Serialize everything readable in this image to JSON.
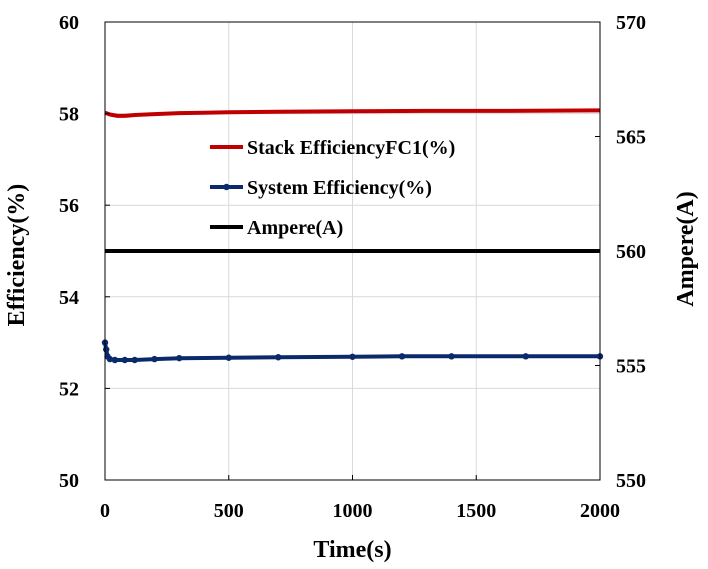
{
  "chart_data": {
    "type": "line",
    "title": "",
    "xlabel": "Time(s)",
    "ylabel": "Efficiency(%)",
    "y2label": "Ampere(A)",
    "xlim": [
      0,
      2000
    ],
    "ylim": [
      50,
      60
    ],
    "y2lim": [
      550,
      570
    ],
    "x_ticks": [
      0,
      500,
      1000,
      1500,
      2000
    ],
    "y_ticks": [
      50,
      52,
      54,
      56,
      58,
      60
    ],
    "y2_ticks": [
      550,
      555,
      560,
      565,
      570
    ],
    "grid": true,
    "legend_position": "center-left",
    "series": [
      {
        "name": "Stack EfficiencyFC1(%)",
        "axis": "left",
        "color": "#c00000",
        "markers": false,
        "x": [
          0,
          20,
          50,
          80,
          120,
          200,
          300,
          400,
          500,
          700,
          1000,
          1300,
          1600,
          2000
        ],
        "y": [
          58.02,
          57.98,
          57.95,
          57.95,
          57.97,
          57.99,
          58.01,
          58.02,
          58.03,
          58.04,
          58.05,
          58.06,
          58.06,
          58.07
        ]
      },
      {
        "name": "System Efficiency(%)",
        "axis": "left",
        "color": "#0b2a6b",
        "markers": true,
        "x": [
          0,
          5,
          10,
          20,
          40,
          80,
          120,
          200,
          300,
          500,
          700,
          1000,
          1200,
          1400,
          1700,
          2000
        ],
        "y": [
          53.0,
          52.85,
          52.7,
          52.64,
          52.62,
          52.62,
          52.62,
          52.64,
          52.66,
          52.67,
          52.68,
          52.69,
          52.7,
          52.7,
          52.7,
          52.7
        ]
      },
      {
        "name": "Ampere(A)",
        "axis": "right",
        "color": "#000000",
        "markers": false,
        "x": [
          0,
          2000
        ],
        "y": [
          560,
          560
        ]
      }
    ]
  }
}
